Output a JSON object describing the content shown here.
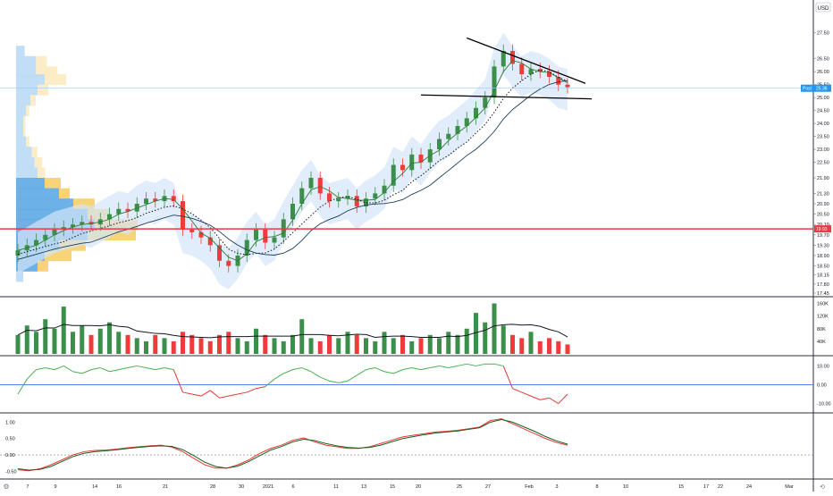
{
  "currency_label": "USD",
  "price_axis": {
    "ticks": [
      "27.50",
      "26.50",
      "26.00",
      "25.50",
      "25.00",
      "24.50",
      "24.00",
      "23.50",
      "23.00",
      "22.50",
      "21.90",
      "21.30",
      "20.90",
      "20.50",
      "20.10",
      "19.70",
      "19.30",
      "18.90",
      "18.50",
      "18.15",
      "17.80",
      "17.45"
    ],
    "last_price": {
      "label": "Post",
      "value": "25.36"
    },
    "support_level": "19.93"
  },
  "volume_axis": {
    "ticks": [
      "160K",
      "120K",
      "80K",
      "40K"
    ]
  },
  "oscillator_axis": {
    "ticks": [
      "10.00",
      "0.00",
      "-10.00"
    ]
  },
  "macd_axis": {
    "ticks": [
      "1.00",
      "0.50",
      "0.00",
      "-0.50"
    ]
  },
  "time_axis": {
    "ticks": [
      "7",
      "9",
      "14",
      "16",
      "21",
      "28",
      "30",
      "2021",
      "6",
      "11",
      "13",
      "15",
      "20",
      "25",
      "27",
      "Feb",
      "3",
      "8",
      "10",
      "15",
      "17",
      "22",
      "24",
      "Mar"
    ]
  },
  "footer": {
    "left_icon": "settings-icon",
    "right_icon": "auto-scale-icon"
  },
  "colors": {
    "up": "#26a69a",
    "up_vol": "#3b8f4a",
    "down": "#ef3b3b",
    "support": "#f23645",
    "last_price": "#2196f3",
    "osc_green": "#4caf50",
    "osc_red": "#e53935"
  },
  "chart_data": [
    {
      "type": "candlestick",
      "panel": "price",
      "ylim": [
        17.45,
        27.8
      ],
      "closes": [
        19.1,
        19.3,
        19.5,
        19.7,
        19.9,
        20.0,
        20.1,
        20.2,
        20.1,
        20.3,
        20.5,
        20.7,
        20.6,
        20.9,
        21.1,
        21.0,
        21.2,
        21.0,
        19.9,
        19.8,
        19.6,
        19.3,
        18.7,
        18.5,
        18.9,
        19.5,
        19.9,
        19.4,
        19.6,
        20.3,
        20.9,
        21.5,
        21.9,
        21.3,
        21.0,
        21.1,
        21.2,
        20.8,
        21.1,
        21.3,
        21.6,
        22.4,
        22.2,
        22.8,
        22.5,
        23.0,
        23.4,
        23.6,
        23.9,
        24.2,
        24.6,
        25.0,
        26.2,
        26.8,
        26.3,
        25.9,
        26.1,
        26.0,
        25.8,
        25.5,
        25.4
      ],
      "support": 19.93,
      "last": 25.36
    },
    {
      "type": "bar",
      "panel": "volume",
      "ylim": [
        0,
        170000
      ],
      "values": [
        60000,
        90000,
        70000,
        110000,
        80000,
        150000,
        70000,
        90000,
        60000,
        80000,
        100000,
        70000,
        60000,
        50000,
        40000,
        60000,
        50000,
        40000,
        70000,
        60000,
        50000,
        40000,
        60000,
        70000,
        50000,
        40000,
        80000,
        60000,
        50000,
        40000,
        60000,
        110000,
        50000,
        40000,
        60000,
        50000,
        70000,
        60000,
        50000,
        40000,
        70000,
        50000,
        60000,
        40000,
        50000,
        60000,
        50000,
        70000,
        60000,
        80000,
        130000,
        100000,
        160000,
        90000,
        60000,
        50000,
        70000,
        40000,
        50000,
        40000,
        30000
      ]
    },
    {
      "type": "line",
      "panel": "oscillator",
      "ylim": [
        -14,
        14
      ],
      "values": [
        -5,
        3,
        8,
        9,
        8,
        10,
        7,
        6,
        8,
        9,
        7,
        8,
        9,
        10,
        9,
        8,
        9,
        8,
        -4,
        -5,
        -6,
        -3,
        -7,
        -6,
        -5,
        -4,
        -2,
        -1,
        3,
        6,
        8,
        9,
        7,
        4,
        2,
        1,
        2,
        5,
        8,
        9,
        7,
        6,
        8,
        9,
        8,
        9,
        10,
        9,
        10,
        11,
        10,
        11,
        11,
        10,
        -2,
        -4,
        -6,
        -8,
        -7,
        -10,
        -5
      ],
      "baseline": 0
    },
    {
      "type": "line",
      "panel": "macd",
      "ylim": [
        -0.65,
        1.2
      ],
      "series": [
        {
          "values": [
            -0.45,
            -0.48,
            -0.42,
            -0.3,
            -0.15,
            0.0,
            0.1,
            0.14,
            0.15,
            0.18,
            0.22,
            0.25,
            0.28,
            0.3,
            0.24,
            0.1,
            -0.1,
            -0.3,
            -0.4,
            -0.4,
            -0.3,
            -0.15,
            0.05,
            0.2,
            0.3,
            0.45,
            0.52,
            0.4,
            0.3,
            0.25,
            0.2,
            0.2,
            0.25,
            0.35,
            0.45,
            0.55,
            0.6,
            0.65,
            0.7,
            0.72,
            0.75,
            0.8,
            0.85,
            1.05,
            1.1,
            0.95,
            0.8,
            0.65,
            0.5,
            0.38,
            0.3
          ]
        },
        {
          "values": [
            -0.42,
            -0.46,
            -0.44,
            -0.35,
            -0.2,
            -0.05,
            0.05,
            0.1,
            0.13,
            0.16,
            0.2,
            0.23,
            0.26,
            0.28,
            0.26,
            0.16,
            -0.02,
            -0.22,
            -0.35,
            -0.4,
            -0.34,
            -0.2,
            -0.02,
            0.15,
            0.26,
            0.4,
            0.48,
            0.44,
            0.35,
            0.28,
            0.23,
            0.21,
            0.23,
            0.3,
            0.4,
            0.5,
            0.56,
            0.62,
            0.67,
            0.7,
            0.73,
            0.78,
            0.83,
            1.0,
            1.08,
            1.0,
            0.86,
            0.72,
            0.56,
            0.43,
            0.33
          ]
        }
      ]
    }
  ]
}
